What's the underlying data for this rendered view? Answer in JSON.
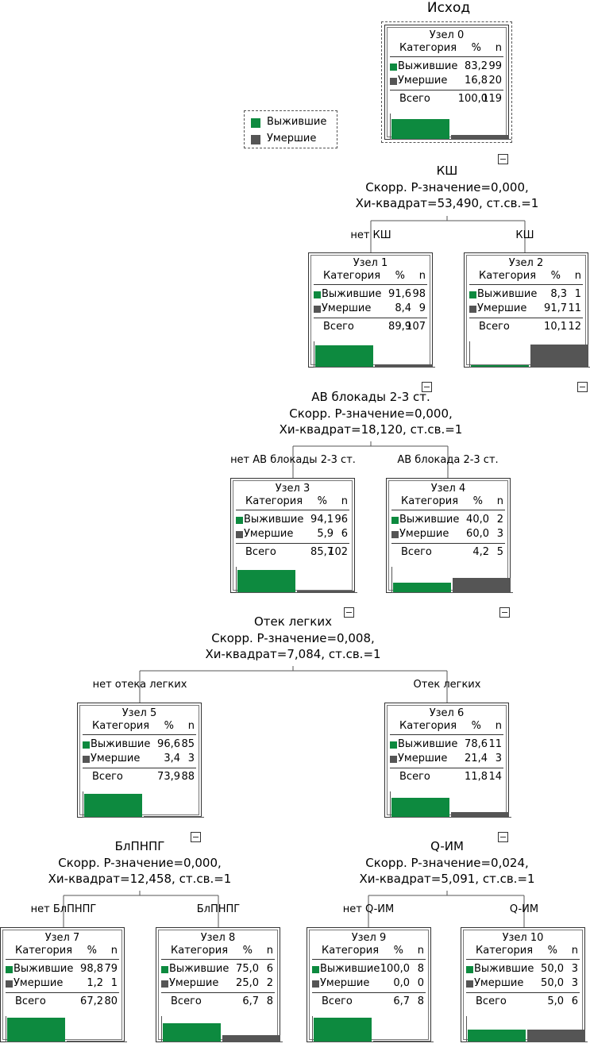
{
  "title": "Исход",
  "colors": {
    "survived": "#0d8a3f",
    "died": "#555555"
  },
  "legend": [
    {
      "label": "Выжившие",
      "color": "#0d8a3f"
    },
    {
      "label": "Умершие",
      "color": "#555555"
    }
  ],
  "table_headers": {
    "category": "Категория",
    "percent": "%",
    "n": "n"
  },
  "nodes": [
    {
      "title": "Узел 0",
      "rows": [
        {
          "label": "Выжившие",
          "pct": "83,2",
          "n": "99"
        },
        {
          "label": "Умершие",
          "pct": "16,8",
          "n": "20"
        }
      ],
      "total_label": "Всего",
      "total_pct": "100,0",
      "total_n": "119",
      "survived_frac": 0.832
    },
    {
      "title": "Узел 1",
      "rows": [
        {
          "label": "Выжившие",
          "pct": "91,6",
          "n": "98"
        },
        {
          "label": "Умершие",
          "pct": "8,4",
          "n": "9"
        }
      ],
      "total_label": "Всего",
      "total_pct": "89,9",
      "total_n": "107",
      "survived_frac": 0.916
    },
    {
      "title": "Узел 2",
      "rows": [
        {
          "label": "Выжившие",
          "pct": "8,3",
          "n": "1"
        },
        {
          "label": "Умершие",
          "pct": "91,7",
          "n": "11"
        }
      ],
      "total_label": "Всего",
      "total_pct": "10,1",
      "total_n": "12",
      "survived_frac": 0.083
    },
    {
      "title": "Узел 3",
      "rows": [
        {
          "label": "Выжившие",
          "pct": "94,1",
          "n": "96"
        },
        {
          "label": "Умершие",
          "pct": "5,9",
          "n": "6"
        }
      ],
      "total_label": "Всего",
      "total_pct": "85,7",
      "total_n": "102",
      "survived_frac": 0.941
    },
    {
      "title": "Узел 4",
      "rows": [
        {
          "label": "Выжившие",
          "pct": "40,0",
          "n": "2"
        },
        {
          "label": "Умершие",
          "pct": "60,0",
          "n": "3"
        }
      ],
      "total_label": "Всего",
      "total_pct": "4,2",
      "total_n": "5",
      "survived_frac": 0.4
    },
    {
      "title": "Узел 5",
      "rows": [
        {
          "label": "Выжившие",
          "pct": "96,6",
          "n": "85"
        },
        {
          "label": "Умершие",
          "pct": "3,4",
          "n": "3"
        }
      ],
      "total_label": "Всего",
      "total_pct": "73,9",
      "total_n": "88",
      "survived_frac": 0.966
    },
    {
      "title": "Узел 6",
      "rows": [
        {
          "label": "Выжившие",
          "pct": "78,6",
          "n": "11"
        },
        {
          "label": "Умершие",
          "pct": "21,4",
          "n": "3"
        }
      ],
      "total_label": "Всего",
      "total_pct": "11,8",
      "total_n": "14",
      "survived_frac": 0.786
    },
    {
      "title": "Узел 7",
      "rows": [
        {
          "label": "Выжившие",
          "pct": "98,8",
          "n": "79"
        },
        {
          "label": "Умершие",
          "pct": "1,2",
          "n": "1"
        }
      ],
      "total_label": "Всего",
      "total_pct": "67,2",
      "total_n": "80",
      "survived_frac": 0.988
    },
    {
      "title": "Узел 8",
      "rows": [
        {
          "label": "Выжившие",
          "pct": "75,0",
          "n": "6"
        },
        {
          "label": "Умершие",
          "pct": "25,0",
          "n": "2"
        }
      ],
      "total_label": "Всего",
      "total_pct": "6,7",
      "total_n": "8",
      "survived_frac": 0.75
    },
    {
      "title": "Узел 9",
      "rows": [
        {
          "label": "Выжившие",
          "pct": "100,0",
          "n": "8"
        },
        {
          "label": "Умершие",
          "pct": "0,0",
          "n": "0"
        }
      ],
      "total_label": "Всего",
      "total_pct": "6,7",
      "total_n": "8",
      "survived_frac": 1.0
    },
    {
      "title": "Узел 10",
      "rows": [
        {
          "label": "Выжившие",
          "pct": "50,0",
          "n": "3"
        },
        {
          "label": "Умершие",
          "pct": "50,0",
          "n": "3"
        }
      ],
      "total_label": "Всего",
      "total_pct": "5,0",
      "total_n": "6",
      "survived_frac": 0.5
    }
  ],
  "splits": [
    {
      "variable": "КШ",
      "p_value": "Скорр. P-значение=0,000,",
      "chi": "Хи-квадрат=53,490, ст.св.=1"
    },
    {
      "variable": "АВ блокады 2-3 ст.",
      "p_value": "Скорр. P-значение=0,000,",
      "chi": "Хи-квадрат=18,120, ст.св.=1"
    },
    {
      "variable": "Отек легких",
      "p_value": "Скорр. P-значение=0,008,",
      "chi": "Хи-квадрат=7,084, ст.св.=1"
    },
    {
      "variable": "БлПНПГ",
      "p_value": "Скорр. P-значение=0,000,",
      "chi": "Хи-квадрат=12,458, ст.св.=1"
    },
    {
      "variable": "Q-ИМ",
      "p_value": "Скорр. P-значение=0,024,",
      "chi": "Хи-квадрат=5,091, ст.св.=1"
    }
  ],
  "edges": [
    "нет КШ",
    "КШ",
    "нет АВ блокады 2-3 ст.",
    "АВ блокада 2-3 ст.",
    "нет отека легких",
    "Отек легких",
    "нет БлПНПГ",
    "БлПНПГ",
    "нет Q-ИМ",
    "Q-ИМ"
  ]
}
